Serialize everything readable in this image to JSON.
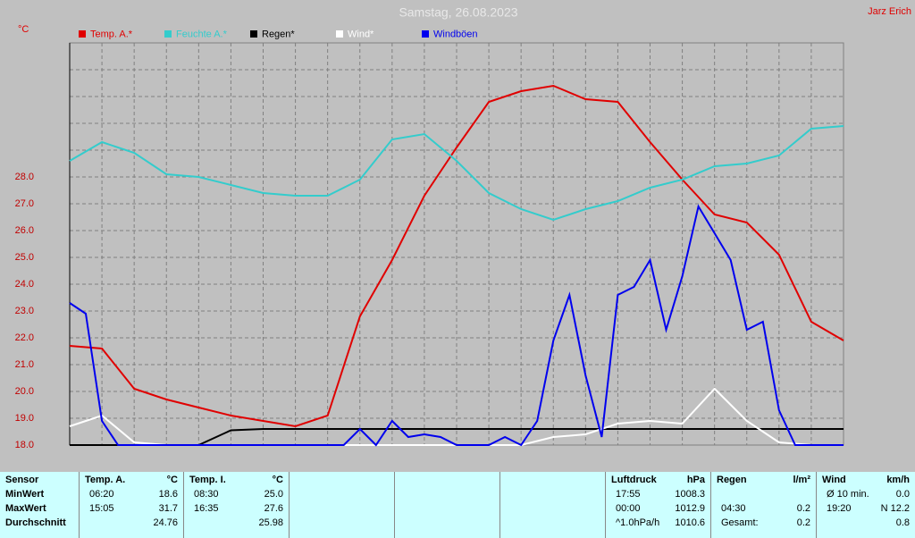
{
  "chart_data": {
    "type": "line",
    "title": "Samstag, 26.08.2023",
    "author": "Jarz Erich",
    "y_label": "°C",
    "ylim": [
      18,
      33
    ],
    "yticks": [
      {
        "value": 18,
        "label": "18.0"
      },
      {
        "value": 19,
        "label": "19.0"
      },
      {
        "value": 20,
        "label": "20.0"
      },
      {
        "value": 21,
        "label": "21.0"
      },
      {
        "value": 22,
        "label": "22.0"
      },
      {
        "value": 23,
        "label": "23.0"
      },
      {
        "value": 24,
        "label": "24.0"
      },
      {
        "value": 25,
        "label": "25.0"
      },
      {
        "value": 26,
        "label": "26.0"
      },
      {
        "value": 27,
        "label": "27.0"
      },
      {
        "value": 28,
        "label": "28.0"
      }
    ],
    "grid": true,
    "series": [
      {
        "name": "Temp. A.*",
        "color": "#e00000",
        "values": [
          21.7,
          21.6,
          20.1,
          19.7,
          19.4,
          19.1,
          18.9,
          18.7,
          19.1,
          22.8,
          24.9,
          27.3,
          29.1,
          30.8,
          31.2,
          31.4,
          30.9,
          30.8,
          29.3,
          27.9,
          26.6,
          26.3,
          25.1,
          22.6,
          21.9
        ]
      },
      {
        "name": "Feuchte A.*",
        "color": "#33cccc",
        "values": [
          28.6,
          29.3,
          28.9,
          28.1,
          28.0,
          27.7,
          27.4,
          27.3,
          27.3,
          27.9,
          29.4,
          29.6,
          28.6,
          27.4,
          26.8,
          26.4,
          26.8,
          27.1,
          27.6,
          27.9,
          28.4,
          28.5,
          28.8,
          29.8,
          29.9
        ]
      },
      {
        "name": "Regen*",
        "color": "#000000",
        "values": [
          18.0,
          18.0,
          18.0,
          18.0,
          18.0,
          18.55,
          18.6,
          18.6,
          18.6,
          18.6,
          18.6,
          18.6,
          18.6,
          18.6,
          18.6,
          18.6,
          18.6,
          18.6,
          18.6,
          18.6,
          18.6,
          18.6,
          18.6,
          18.6,
          18.6
        ]
      },
      {
        "name": "Wind*",
        "color": "#ffffff",
        "values": [
          18.7,
          19.1,
          18.1,
          18.0,
          18.0,
          18.0,
          18.0,
          18.0,
          18.0,
          18.0,
          18.0,
          18.0,
          18.0,
          18.0,
          18.0,
          18.3,
          18.4,
          18.8,
          18.9,
          18.8,
          20.1,
          18.9,
          18.1,
          18.0,
          18.0
        ]
      },
      {
        "name": "Windböen",
        "color": "#0000ee",
        "values": [
          23.3,
          22.9,
          18.9,
          18.0,
          18.0,
          18.0,
          18.0,
          18.0,
          18.0,
          18.0,
          18.0,
          18.0,
          18.0,
          18.0,
          18.0,
          18.0,
          18.0,
          18.0,
          18.6,
          18.0,
          18.9,
          18.3,
          18.4,
          18.3,
          18.0,
          18.0,
          18.0,
          18.3,
          18.0,
          18.9,
          21.9,
          23.6,
          20.6,
          18.3,
          23.6,
          23.9,
          24.9,
          22.3,
          24.3,
          26.9,
          25.9,
          24.9,
          22.3,
          22.6,
          19.3,
          18.0,
          18.0,
          18.0,
          18.0
        ]
      }
    ]
  },
  "table": {
    "sensor": [
      "Sensor",
      "MinWert",
      "MaxWert",
      "Durchschnitt"
    ],
    "blocks": [
      {
        "header": "Temp. A.",
        "unit": "°C",
        "rows": [
          {
            "time": "06:20",
            "value": "18.6"
          },
          {
            "time": "15:05",
            "value": "31.7"
          },
          {
            "value": "24.76"
          }
        ]
      },
      {
        "header": "Temp. I.",
        "unit": "°C",
        "rows": [
          {
            "time": "08:30",
            "value": "25.0"
          },
          {
            "time": "16:35",
            "value": "27.6"
          },
          {
            "value": "25.98"
          }
        ]
      },
      null,
      null,
      null,
      {
        "header": "Luftdruck",
        "unit": "hPa",
        "rows": [
          {
            "time": "17:55",
            "value": "1008.3"
          },
          {
            "time": "00:00",
            "value": "1012.9"
          },
          {
            "time": "^1.0hPa/h",
            "value": "1010.6"
          }
        ]
      },
      {
        "header": "Regen",
        "unit": "l/m²",
        "rows": [
          null,
          {
            "time": "04:30",
            "value": "0.2"
          },
          {
            "time": "Gesamt:",
            "value": "0.2"
          }
        ]
      },
      {
        "header": "Wind",
        "unit": "km/h",
        "rows": [
          {
            "time": "Ø 10 min.",
            "value": "0.0"
          },
          {
            "time": "19:20",
            "value": "N 12.2"
          },
          {
            "value": "0.8"
          }
        ]
      }
    ]
  }
}
